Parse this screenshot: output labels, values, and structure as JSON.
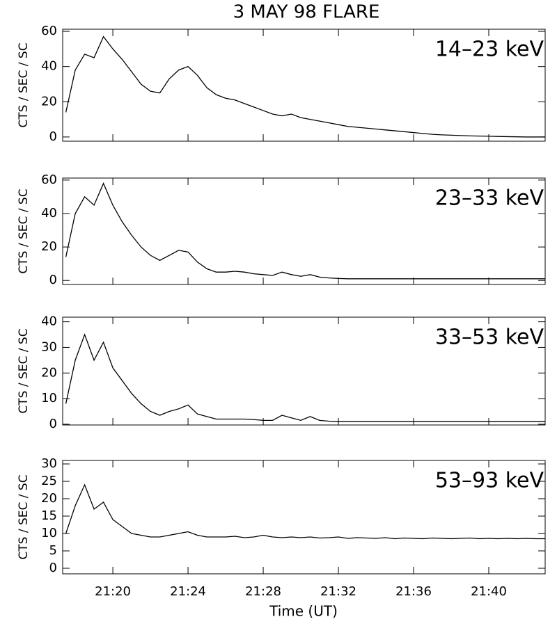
{
  "title": "3 MAY 98 FLARE",
  "x_label": "Time (UT)",
  "chart_data": [
    {
      "type": "line",
      "label": "14–23 keV",
      "y_label": "CTS / SEC / SC",
      "color": "#000000",
      "x": [
        1277.5,
        1278,
        1278.5,
        1279,
        1279.5,
        1280,
        1280.5,
        1281,
        1281.5,
        1282,
        1282.5,
        1283,
        1283.5,
        1284,
        1284.5,
        1285,
        1285.5,
        1286,
        1286.5,
        1287,
        1287.5,
        1288,
        1288.5,
        1289,
        1289.5,
        1290,
        1290.5,
        1291,
        1291.5,
        1292,
        1292.5,
        1293,
        1293.5,
        1294,
        1294.5,
        1295,
        1295.5,
        1296,
        1296.5,
        1297,
        1297.5,
        1298,
        1298.5,
        1299,
        1299.5,
        1300,
        1300.5,
        1301,
        1301.5,
        1302,
        1302.5,
        1303
      ],
      "values": [
        14,
        38,
        47,
        45,
        57,
        50,
        44,
        37,
        30,
        26,
        25,
        33,
        38,
        40,
        35,
        28,
        24,
        22,
        21,
        19,
        17,
        15,
        13,
        12,
        13,
        11,
        10,
        9,
        8,
        7,
        6,
        5.5,
        5,
        4.5,
        4,
        3.5,
        3,
        2.5,
        2,
        1.5,
        1.2,
        1,
        0.8,
        0.6,
        0.5,
        0.4,
        0.3,
        0.2,
        0.1,
        0,
        0,
        0
      ],
      "xlim": [
        1277.33,
        1303
      ],
      "ylim": [
        -2.4,
        61.2
      ],
      "yticks": [
        0,
        20,
        40,
        60
      ],
      "xticks": [
        1280,
        1284,
        1288,
        1292,
        1296,
        1300
      ]
    },
    {
      "type": "line",
      "label": "23–33 keV",
      "y_label": "CTS / SEC / SC",
      "color": "#000000",
      "x": [
        1277.5,
        1278,
        1278.5,
        1279,
        1279.5,
        1280,
        1280.5,
        1281,
        1281.5,
        1282,
        1282.5,
        1283,
        1283.5,
        1284,
        1284.5,
        1285,
        1285.5,
        1286,
        1286.5,
        1287,
        1287.5,
        1288,
        1288.5,
        1289,
        1289.5,
        1290,
        1290.5,
        1291,
        1291.5,
        1292,
        1292.5,
        1293,
        1293.5,
        1294,
        1294.5,
        1295,
        1295.5,
        1296,
        1296.5,
        1297,
        1297.5,
        1298,
        1298.5,
        1299,
        1299.5,
        1300,
        1300.5,
        1301,
        1301.5,
        1302,
        1302.5,
        1303
      ],
      "values": [
        14,
        40,
        50,
        45,
        58,
        45,
        35,
        27,
        20,
        15,
        12,
        15,
        18,
        17,
        11,
        7,
        5,
        5,
        5.5,
        5,
        4,
        3.5,
        3,
        5,
        3.5,
        2.5,
        3.5,
        2,
        1.5,
        1.2,
        1,
        1,
        1,
        1,
        1,
        1,
        1,
        1,
        1,
        1,
        1,
        1,
        1,
        1,
        1,
        1,
        1,
        1,
        1,
        1,
        1,
        1
      ],
      "xlim": [
        1277.33,
        1303
      ],
      "ylim": [
        -2.4,
        61.2
      ],
      "yticks": [
        0,
        20,
        40,
        60
      ],
      "xticks": [
        1280,
        1284,
        1288,
        1292,
        1296,
        1300
      ]
    },
    {
      "type": "line",
      "label": "33–53 keV",
      "y_label": "CTS / SEC / SC",
      "color": "#000000",
      "x": [
        1277.5,
        1278,
        1278.5,
        1279,
        1279.5,
        1280,
        1280.5,
        1281,
        1281.5,
        1282,
        1282.5,
        1283,
        1283.5,
        1284,
        1284.5,
        1285,
        1285.5,
        1286,
        1286.5,
        1287,
        1287.5,
        1288,
        1288.5,
        1289,
        1289.5,
        1290,
        1290.5,
        1291,
        1291.5,
        1292,
        1292.5,
        1293,
        1293.5,
        1294,
        1294.5,
        1295,
        1295.5,
        1296,
        1296.5,
        1297,
        1297.5,
        1298,
        1298.5,
        1299,
        1299.5,
        1300,
        1300.5,
        1301,
        1301.5,
        1302,
        1302.5,
        1303
      ],
      "values": [
        8,
        25,
        35,
        25,
        32,
        22,
        17,
        12,
        8,
        5,
        3.5,
        5,
        6,
        7.5,
        4,
        3,
        2,
        2,
        2,
        2,
        1.8,
        1.5,
        1.5,
        3.5,
        2.5,
        1.5,
        3,
        1.5,
        1.2,
        1,
        1,
        1,
        1,
        1,
        1,
        1,
        1,
        1,
        1,
        1,
        1,
        1,
        1,
        1,
        1,
        1,
        1,
        1,
        1,
        1,
        1,
        1
      ],
      "xlim": [
        1277.33,
        1303
      ],
      "ylim": [
        -0.3,
        41.8
      ],
      "yticks": [
        0,
        10,
        20,
        30,
        40
      ],
      "xticks": [
        1280,
        1284,
        1288,
        1292,
        1296,
        1300
      ]
    },
    {
      "type": "line",
      "label": "53–93 keV",
      "y_label": "CTS / SEC / SC",
      "color": "#000000",
      "x": [
        1277.5,
        1278,
        1278.5,
        1279,
        1279.5,
        1280,
        1280.5,
        1281,
        1281.5,
        1282,
        1282.5,
        1283,
        1283.5,
        1284,
        1284.5,
        1285,
        1285.5,
        1286,
        1286.5,
        1287,
        1287.5,
        1288,
        1288.5,
        1289,
        1289.5,
        1290,
        1290.5,
        1291,
        1291.5,
        1292,
        1292.5,
        1293,
        1293.5,
        1294,
        1294.5,
        1295,
        1295.5,
        1296,
        1296.5,
        1297,
        1297.5,
        1298,
        1298.5,
        1299,
        1299.5,
        1300,
        1300.5,
        1301,
        1301.5,
        1302,
        1302.5,
        1303
      ],
      "values": [
        10,
        18,
        24,
        17,
        19,
        14,
        12,
        10,
        9.5,
        9,
        9,
        9.5,
        10,
        10.5,
        9.5,
        9,
        9,
        9,
        9.2,
        8.8,
        9,
        9.5,
        9,
        8.8,
        9,
        8.8,
        9,
        8.7,
        8.8,
        9,
        8.6,
        8.8,
        8.7,
        8.6,
        8.8,
        8.5,
        8.7,
        8.6,
        8.5,
        8.7,
        8.6,
        8.5,
        8.6,
        8.7,
        8.5,
        8.6,
        8.5,
        8.6,
        8.5,
        8.6,
        8.5,
        8.5
      ],
      "xlim": [
        1277.33,
        1303
      ],
      "ylim": [
        -1.6,
        31
      ],
      "yticks": [
        0,
        5,
        10,
        15,
        20,
        25,
        30
      ],
      "xticks": [
        {
          "value": 1280,
          "label": "21:20"
        },
        {
          "value": 1284,
          "label": "21:24"
        },
        {
          "value": 1288,
          "label": "21:28"
        },
        {
          "value": 1292,
          "label": "21:32"
        },
        {
          "value": 1296,
          "label": "21:36"
        },
        {
          "value": 1300,
          "label": "21:40"
        }
      ]
    }
  ]
}
